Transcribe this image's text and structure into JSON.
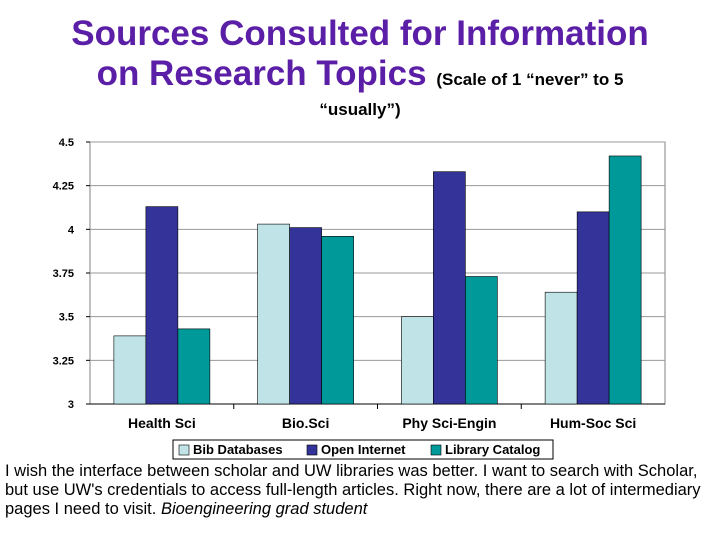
{
  "title": {
    "line1": "Sources Consulted for Information",
    "line2": "on Research Topics",
    "scale_note": "(Scale of 1 “never” to 5",
    "scale_note_2": "“usually”)"
  },
  "chart_data": {
    "type": "bar",
    "categories": [
      "Health Sci",
      "Bio.Sci",
      "Phy Sci-Engin",
      "Hum-Soc Sci"
    ],
    "series": [
      {
        "name": "Bib Databases",
        "values": [
          3.39,
          4.03,
          3.5,
          3.64
        ],
        "color": "#bfe3e6"
      },
      {
        "name": "Open Internet",
        "values": [
          4.13,
          4.01,
          4.33,
          4.1
        ],
        "color": "#333399"
      },
      {
        "name": "Library Catalog",
        "values": [
          3.43,
          3.96,
          3.73,
          4.42
        ],
        "color": "#009999"
      }
    ],
    "ylim": [
      3,
      4.5
    ],
    "yticks": [
      "3",
      "3.25",
      "3.5",
      "3.75",
      "4",
      "4.25",
      "4.5"
    ],
    "grid": true,
    "legend_position": "bottom"
  },
  "quote": {
    "text": "I wish the interface between scholar and UW libraries was better. I want to search with Scholar, but use UW's credentials to access full-length articles.  Right now, there are a lot of intermediary pages I need to visit.  ",
    "attribution": "Bioengineering grad student"
  }
}
